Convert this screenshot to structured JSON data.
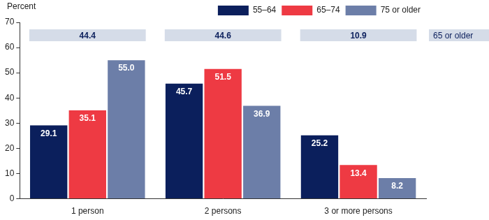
{
  "chart_data": {
    "type": "bar",
    "ylabel": "Percent",
    "categories": [
      "1 person",
      "2 persons",
      "3 or more persons"
    ],
    "series": [
      {
        "name": "55–64",
        "color": "#0b1f5c",
        "values": [
          29.1,
          45.7,
          25.2
        ]
      },
      {
        "name": "65–74",
        "color": "#ee3a43",
        "values": [
          35.1,
          51.5,
          13.4
        ]
      },
      {
        "name": "75 or older",
        "color": "#6c7ea8",
        "values": [
          55.0,
          36.9,
          8.2
        ],
        "value_labels": [
          "55.0",
          "36.9",
          "8.2"
        ]
      }
    ],
    "ylim": [
      0,
      70
    ],
    "yticks": [
      0,
      10,
      20,
      30,
      40,
      50,
      60,
      70
    ],
    "grid": false,
    "legend": "top right",
    "data_labels": true,
    "annotations": [
      {
        "text": "65 or older",
        "values": [
          44.4,
          44.6,
          10.9
        ]
      }
    ]
  }
}
